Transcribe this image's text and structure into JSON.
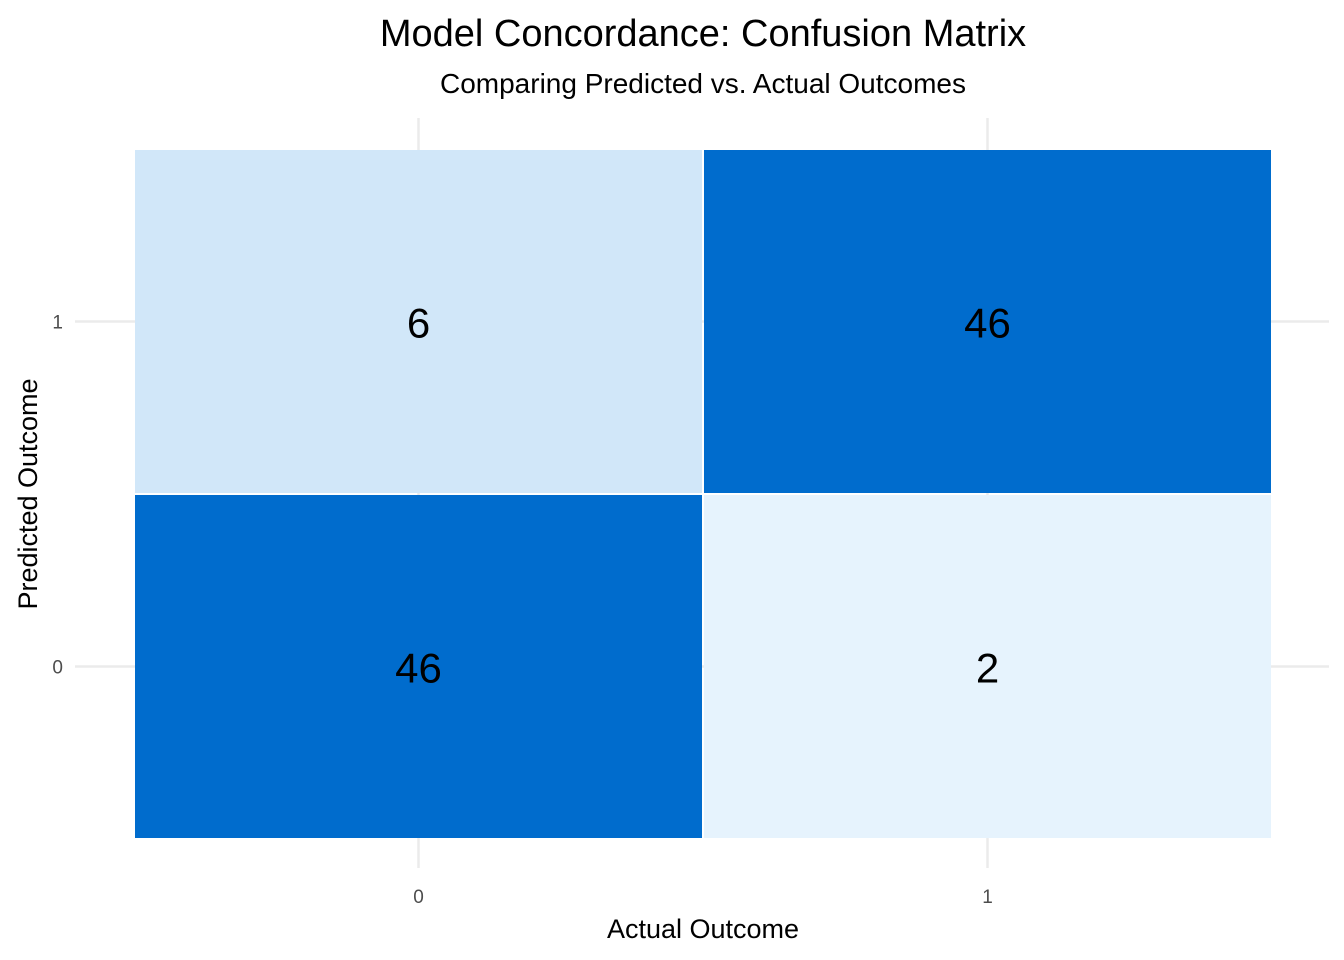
{
  "chart_data": {
    "type": "heatmap",
    "title": "Model Concordance: Confusion Matrix",
    "subtitle": "Comparing Predicted vs. Actual Outcomes",
    "xlabel": "Actual Outcome",
    "ylabel": "Predicted Outcome",
    "x_categories": [
      "0",
      "1"
    ],
    "y_categories": [
      "0",
      "1"
    ],
    "cells": [
      {
        "actual": "0",
        "predicted": "1",
        "value": 6
      },
      {
        "actual": "1",
        "predicted": "1",
        "value": 46
      },
      {
        "actual": "0",
        "predicted": "0",
        "value": 46
      },
      {
        "actual": "1",
        "predicted": "0",
        "value": 2
      }
    ],
    "color_low": "#e6f3fd",
    "color_high": "#006ccd",
    "grid": true,
    "legend": "none"
  }
}
